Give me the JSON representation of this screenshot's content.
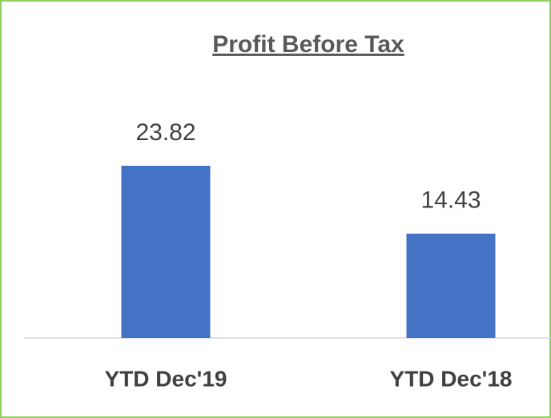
{
  "chart_data": {
    "type": "bar",
    "title": "Profit Before Tax",
    "categories": [
      "YTD Dec'19",
      "YTD Dec'18"
    ],
    "values": [
      23.82,
      14.43
    ],
    "color": "#4472c4"
  }
}
